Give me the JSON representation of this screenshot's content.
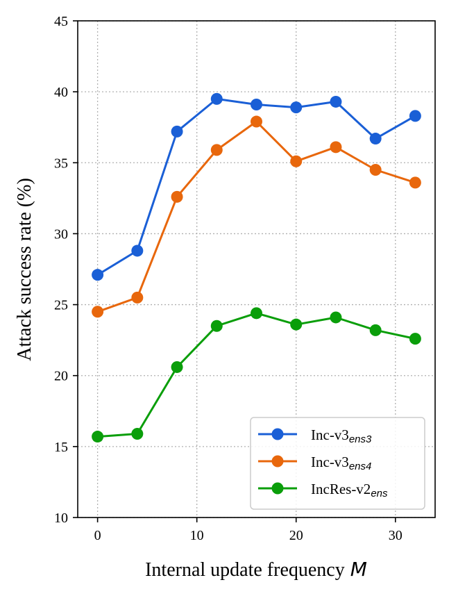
{
  "chart_data": {
    "type": "line",
    "title": "",
    "xlabel": "Internal update frequency",
    "xlabel_var": "M",
    "ylabel": "Attack success rate (%)",
    "xlim": [
      -2,
      34
    ],
    "ylim": [
      10,
      45
    ],
    "xticks": [
      0,
      10,
      20,
      30
    ],
    "yticks": [
      10,
      15,
      20,
      25,
      30,
      35,
      40,
      45
    ],
    "grid": true,
    "legend_position": "bottom-right",
    "x": [
      0,
      4,
      8,
      12,
      16,
      20,
      24,
      28,
      32
    ],
    "series": [
      {
        "name": "Inc-v3",
        "name_sub": "ens3",
        "color": "#1a5fd6",
        "values": [
          27.1,
          28.8,
          37.2,
          39.5,
          39.1,
          38.9,
          39.3,
          36.7,
          38.3
        ]
      },
      {
        "name": "Inc-v3",
        "name_sub": "ens4",
        "color": "#e8670c",
        "values": [
          24.5,
          25.5,
          32.6,
          35.9,
          37.9,
          35.1,
          36.1,
          34.5,
          33.6
        ]
      },
      {
        "name": "IncRes-v2",
        "name_sub": "ens",
        "color": "#0a9e0a",
        "values": [
          15.7,
          15.9,
          20.6,
          23.5,
          24.4,
          23.6,
          24.1,
          23.2,
          22.6
        ]
      }
    ]
  }
}
